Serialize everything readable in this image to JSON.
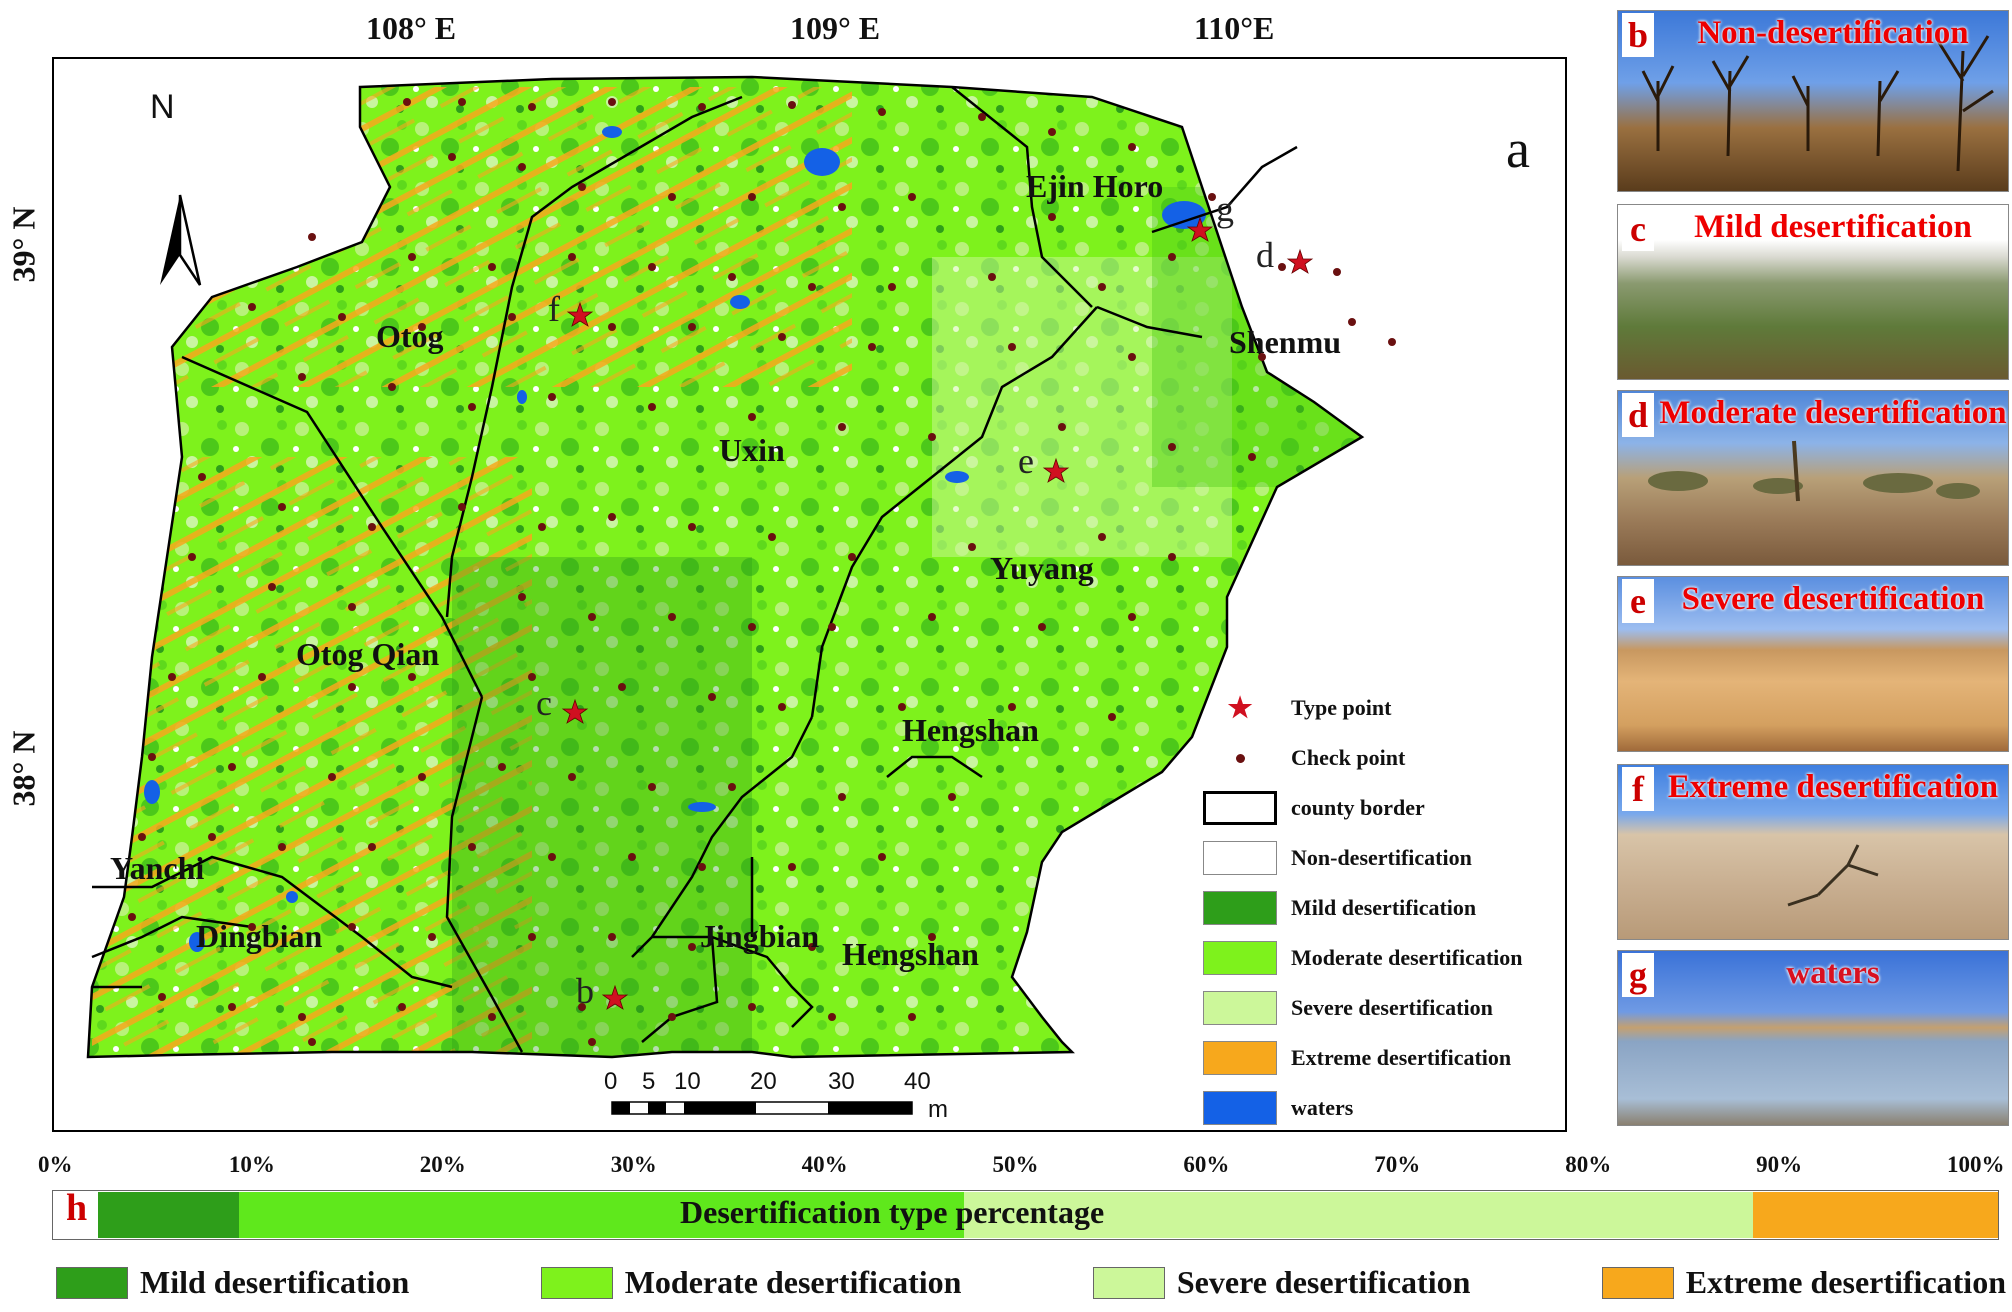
{
  "map": {
    "panel_letter": "a",
    "north_label": "N",
    "lon_labels": [
      "108° E",
      "109° E",
      "110°E"
    ],
    "lat_labels": [
      "39° N",
      "38° N"
    ],
    "counties": [
      "Otog",
      "Uxin",
      "Ejin Horo",
      "Shenmu",
      "Yuyang",
      "Otog Qian",
      "Hengshan",
      "Yanchi",
      "Dingbian",
      "Jingbian",
      "Hengshan"
    ],
    "point_labels": [
      "f",
      "g",
      "d",
      "e",
      "c",
      "b"
    ],
    "scale_ticks": [
      "0",
      "5",
      "10",
      "20",
      "30",
      "40"
    ],
    "scale_unit": "m",
    "legend": [
      {
        "label": "Type point",
        "kind": "star",
        "color": "#d01020"
      },
      {
        "label": "Check point",
        "kind": "dot",
        "color": "#6a1010"
      },
      {
        "label": "county border",
        "kind": "border",
        "color": "#000000"
      },
      {
        "label": "Non-desertification",
        "kind": "fill",
        "color": "#ffffff"
      },
      {
        "label": "Mild desertification",
        "kind": "fill",
        "color": "#2e9e1a"
      },
      {
        "label": "Moderate desertification",
        "kind": "fill",
        "color": "#7ef21c"
      },
      {
        "label": "Severe desertification",
        "kind": "fill",
        "color": "#ccf79a"
      },
      {
        "label": "Extreme desertification",
        "kind": "fill",
        "color": "#f7a81c"
      },
      {
        "label": "waters",
        "kind": "fill",
        "color": "#1461e6"
      }
    ]
  },
  "photos": [
    {
      "letter": "b",
      "title": "Non-desertification",
      "scene": "trees"
    },
    {
      "letter": "c",
      "title": "Mild desertification",
      "scene": "grass"
    },
    {
      "letter": "d",
      "title": "Moderate desertification",
      "scene": "shrub"
    },
    {
      "letter": "e",
      "title": "Severe desertification",
      "scene": "sand"
    },
    {
      "letter": "f",
      "title": "Extreme desertification",
      "scene": "dune"
    },
    {
      "letter": "g",
      "title": "waters",
      "scene": "water"
    }
  ],
  "chart_data": {
    "type": "bar",
    "title": "Desertification type percentage",
    "panel_letter": "h",
    "axis_ticks": [
      "0%",
      "10%",
      "20%",
      "30%",
      "40%",
      "50%",
      "60%",
      "70%",
      "80%",
      "90%",
      "100%"
    ],
    "xlim": [
      0,
      100
    ],
    "series": [
      {
        "name": "Mild desertification",
        "value": 7.4,
        "color": "#2e9e1a"
      },
      {
        "name": "Moderate desertification",
        "value": 38.2,
        "color": "#5fe81c"
      },
      {
        "name": "Severe desertification",
        "value": 41.5,
        "color": "#ccf79a"
      },
      {
        "name": "Extreme desertification",
        "value": 12.9,
        "color": "#f7a81c"
      }
    ],
    "legend_position": "bottom"
  }
}
